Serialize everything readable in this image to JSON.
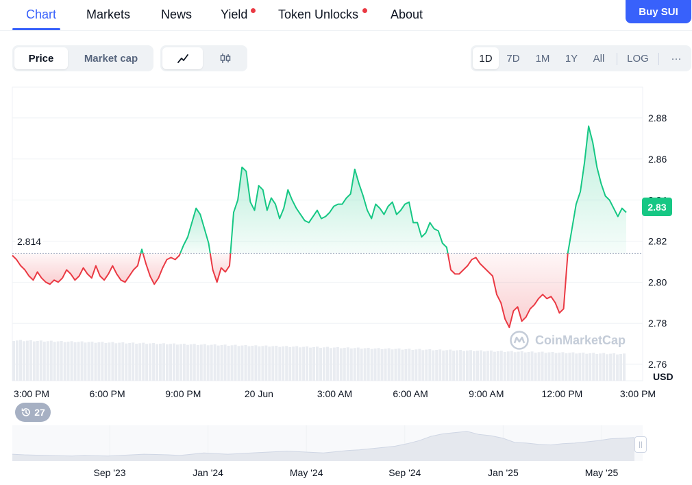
{
  "nav": {
    "tabs": [
      {
        "label": "Chart",
        "active": true
      },
      {
        "label": "Markets"
      },
      {
        "label": "News"
      },
      {
        "label": "Yield",
        "dot": true
      },
      {
        "label": "Token Unlocks",
        "dot": true
      },
      {
        "label": "About"
      }
    ],
    "buy_label": "Buy SUI"
  },
  "toolbar": {
    "metric": [
      "Price",
      "Market cap"
    ],
    "metric_selected": "Price",
    "chart_types": [
      "line-chart-icon",
      "candlestick-icon"
    ],
    "ranges": [
      "1D",
      "7D",
      "1M",
      "1Y",
      "All"
    ],
    "range_selected": "1D",
    "log_label": "LOG",
    "more_label": "···"
  },
  "chart_data": {
    "type": "line",
    "reference_price": 2.814,
    "reference_label": "2.814",
    "current_price_label": "2.83",
    "currency_label": "USD",
    "yticks": [
      "2.88",
      "2.86",
      "2.84",
      "2.82",
      "2.80",
      "2.78",
      "2.76"
    ],
    "ylim": [
      2.752,
      2.895
    ],
    "xticks": [
      "3:00 PM",
      "6:00 PM",
      "9:00 PM",
      "20 Jun",
      "3:00 AM",
      "6:00 AM",
      "9:00 AM",
      "12:00 PM",
      "3:00 PM"
    ],
    "up_color": "#16c784",
    "down_color": "#ea3943",
    "values": [
      2.813,
      2.811,
      2.808,
      2.806,
      2.803,
      2.801,
      2.805,
      2.802,
      2.8,
      2.799,
      2.801,
      2.8,
      2.802,
      2.806,
      2.804,
      2.801,
      2.803,
      2.807,
      2.804,
      2.802,
      2.808,
      2.803,
      2.801,
      2.804,
      2.808,
      2.804,
      2.801,
      2.8,
      2.803,
      2.806,
      2.808,
      2.816,
      2.809,
      2.803,
      2.799,
      2.802,
      2.807,
      2.811,
      2.812,
      2.811,
      2.813,
      2.818,
      2.822,
      2.829,
      2.836,
      2.833,
      2.826,
      2.819,
      2.806,
      2.8,
      2.807,
      2.805,
      2.808,
      2.834,
      2.84,
      2.856,
      2.854,
      2.839,
      2.835,
      2.847,
      2.845,
      2.835,
      2.841,
      2.838,
      2.831,
      2.836,
      2.845,
      2.84,
      2.836,
      2.833,
      2.83,
      2.829,
      2.832,
      2.835,
      2.831,
      2.832,
      2.834,
      2.837,
      2.838,
      2.838,
      2.841,
      2.843,
      2.855,
      2.848,
      2.842,
      2.835,
      2.831,
      2.838,
      2.836,
      2.833,
      2.837,
      2.839,
      2.833,
      2.835,
      2.838,
      2.839,
      2.829,
      2.829,
      2.822,
      2.824,
      2.829,
      2.826,
      2.825,
      2.819,
      2.817,
      2.806,
      2.804,
      2.804,
      2.806,
      2.808,
      2.811,
      2.812,
      2.809,
      2.807,
      2.805,
      2.803,
      2.794,
      2.79,
      2.782,
      2.778,
      2.786,
      2.788,
      2.781,
      2.783,
      2.787,
      2.789,
      2.792,
      2.794,
      2.792,
      2.793,
      2.79,
      2.785,
      2.787,
      2.814,
      2.826,
      2.838,
      2.844,
      2.858,
      2.876,
      2.868,
      2.856,
      2.848,
      2.842,
      2.84,
      2.836,
      2.832,
      2.836,
      2.834
    ]
  },
  "badge": {
    "history_count": "27"
  },
  "watermark": "CoinMarketCap",
  "navigator": {
    "labels": [
      "Sep '23",
      "Jan '24",
      "May '24",
      "Sep '24",
      "Jan '25",
      "May '25"
    ],
    "values": [
      0.22,
      0.2,
      0.19,
      0.18,
      0.17,
      0.16,
      0.18,
      0.17,
      0.16,
      0.18,
      0.2,
      0.22,
      0.21,
      0.2,
      0.18,
      0.22,
      0.26,
      0.24,
      0.22,
      0.24,
      0.26,
      0.28,
      0.3,
      0.32,
      0.3,
      0.28,
      0.26,
      0.3,
      0.34,
      0.36,
      0.4,
      0.44,
      0.48,
      0.56,
      0.66,
      0.8,
      0.88,
      0.92,
      0.96,
      0.86,
      0.82,
      0.74,
      0.6,
      0.58,
      0.54,
      0.52,
      0.56,
      0.58,
      0.62,
      0.66,
      0.72,
      0.74,
      0.76
    ]
  }
}
